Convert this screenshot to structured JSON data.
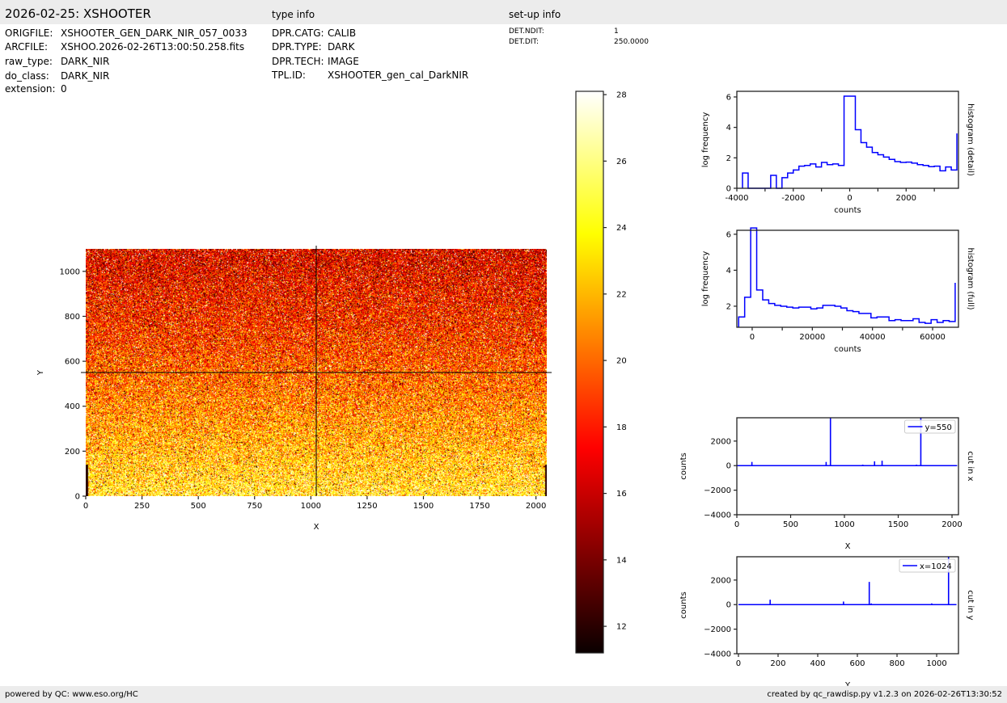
{
  "header": {
    "title": "2026-02-25: XSHOOTER",
    "type_info_title": "type info",
    "setup_info_title": "set-up info"
  },
  "file_info": [
    {
      "key": "ORIGFILE:",
      "value": "XSHOOTER_GEN_DARK_NIR_057_0033"
    },
    {
      "key": "ARCFILE:",
      "value": "XSHOO.2026-02-26T13:00:50.258.fits"
    },
    {
      "key": "raw_type:",
      "value": "DARK_NIR"
    },
    {
      "key": "do_class:",
      "value": "DARK_NIR"
    },
    {
      "key": "extension:",
      "value": "0"
    }
  ],
  "type_info": [
    {
      "key": "DPR.CATG:",
      "value": "CALIB"
    },
    {
      "key": "DPR.TYPE:",
      "value": "DARK"
    },
    {
      "key": "DPR.TECH:",
      "value": "IMAGE"
    },
    {
      "key": "TPL.ID:",
      "value": "XSHOOTER_gen_cal_DarkNIR"
    }
  ],
  "setup_info": [
    {
      "key": "DET.NDIT:",
      "value": "1"
    },
    {
      "key": "DET.DIT:",
      "value": "250.0000"
    }
  ],
  "footer": {
    "left": "powered by QC: www.eso.org/HC",
    "right": "created by qc_rawdisp.py v1.2.3 on 2026-02-26T13:30:52"
  },
  "colors": {
    "line": "#0000ff",
    "bar_bg": "#ececec"
  },
  "chart_data": [
    {
      "id": "image",
      "type": "heatmap",
      "xlabel": "X",
      "ylabel": "Y",
      "xlim": [
        0,
        2048
      ],
      "ylim": [
        0,
        1100
      ],
      "xticks": [
        0,
        250,
        500,
        750,
        1000,
        1250,
        1500,
        1750,
        2000
      ],
      "yticks": [
        0,
        200,
        400,
        600,
        800,
        1000
      ],
      "crosshair": {
        "x": 1024,
        "y": 550
      },
      "colormap": "hot",
      "value_trend": {
        "bottom_mean": 24,
        "top_mean": 17
      },
      "colorbar": {
        "range": [
          11.2,
          28.1
        ],
        "ticks": [
          12,
          14,
          16,
          18,
          20,
          22,
          24,
          26,
          28
        ]
      }
    },
    {
      "id": "hist-detail",
      "type": "line",
      "step": true,
      "xlabel": "counts",
      "ylabel": "log frequency",
      "right_label": "histogram (detail)",
      "xlim": [
        -4000,
        3856
      ],
      "ylim": [
        0,
        6.37
      ],
      "xticks": [
        -4000,
        -2000,
        0,
        2000
      ],
      "xtick_labels": [
        "-4000",
        "-2000",
        "0",
        "2000"
      ],
      "minor_xticks": [
        -3000,
        -1000,
        1000,
        3000
      ],
      "yticks": [
        0,
        2,
        4,
        6
      ],
      "bin_start": -3800,
      "bin_width": 200,
      "values": [
        1.0,
        0,
        0,
        0,
        0,
        0.85,
        0,
        0.7,
        1.0,
        1.2,
        1.45,
        1.5,
        1.6,
        1.4,
        1.7,
        1.55,
        1.6,
        1.5,
        6.05,
        6.05,
        3.85,
        3.0,
        2.7,
        2.35,
        2.2,
        2.05,
        1.9,
        1.75,
        1.7,
        1.72,
        1.65,
        1.55,
        1.5,
        1.42,
        1.45,
        1.15,
        1.4,
        1.2
      ],
      "last_edge_value": 3.6
    },
    {
      "id": "hist-full",
      "type": "line",
      "step": true,
      "xlabel": "counts",
      "ylabel": "log frequency",
      "right_label": "histogram (full)",
      "xlim": [
        -5100,
        68600
      ],
      "ylim": [
        0.83,
        6.22
      ],
      "xticks": [
        0,
        20000,
        40000,
        60000
      ],
      "xtick_labels": [
        "0",
        "20000",
        "40000",
        "60000"
      ],
      "minor_xticks": [
        10000,
        30000,
        50000
      ],
      "yticks": [
        2,
        4,
        6
      ],
      "bin_start": -4500,
      "bin_width": 2000,
      "values": [
        1.4,
        2.5,
        6.35,
        2.9,
        2.35,
        2.15,
        2.05,
        2.0,
        1.95,
        1.9,
        1.95,
        1.95,
        1.85,
        1.9,
        2.05,
        2.05,
        2.0,
        1.9,
        1.75,
        1.7,
        1.6,
        1.6,
        1.35,
        1.4,
        1.4,
        1.2,
        1.25,
        1.2,
        1.2,
        1.3,
        1.1,
        1.05,
        1.25,
        1.1,
        1.2,
        1.15
      ],
      "last_edge_value": 3.3
    },
    {
      "id": "cut-x",
      "type": "line",
      "xlabel": "X",
      "ylabel": "counts",
      "right_label": "cut in x",
      "legend": "y=550",
      "xlim": [
        0,
        2060
      ],
      "ylim": [
        -4000,
        3900
      ],
      "xticks": [
        0,
        500,
        1000,
        1500,
        2000
      ],
      "xtick_labels": [
        "0",
        "500",
        "1000",
        "1500",
        "2000"
      ],
      "yticks": [
        -4000,
        -2000,
        0,
        2000
      ],
      "ytick_labels": [
        "−4000",
        "−2000",
        "0",
        "2000"
      ],
      "baseline": 0,
      "x_end": 2048,
      "spikes": [
        [
          140,
          300
        ],
        [
          830,
          300
        ],
        [
          870,
          3900
        ],
        [
          1170,
          80
        ],
        [
          1280,
          350
        ],
        [
          1350,
          400
        ],
        [
          1670,
          80
        ],
        [
          1710,
          3900
        ]
      ]
    },
    {
      "id": "cut-y",
      "type": "line",
      "xlabel": "Y",
      "ylabel": "counts",
      "right_label": "cut in y",
      "legend": "x=1024",
      "xlim": [
        -8,
        1110
      ],
      "ylim": [
        -4000,
        3900
      ],
      "xticks": [
        0,
        200,
        400,
        600,
        800,
        1000
      ],
      "xtick_labels": [
        "0",
        "200",
        "400",
        "600",
        "800",
        "1000"
      ],
      "yticks": [
        -4000,
        -2000,
        0,
        2000
      ],
      "ytick_labels": [
        "−4000",
        "−2000",
        "0",
        "2000"
      ],
      "baseline": 0,
      "x_end": 1100,
      "spikes": [
        [
          160,
          400
        ],
        [
          530,
          250
        ],
        [
          660,
          1850
        ],
        [
          670,
          100
        ],
        [
          975,
          100
        ],
        [
          1060,
          3900
        ]
      ]
    }
  ]
}
